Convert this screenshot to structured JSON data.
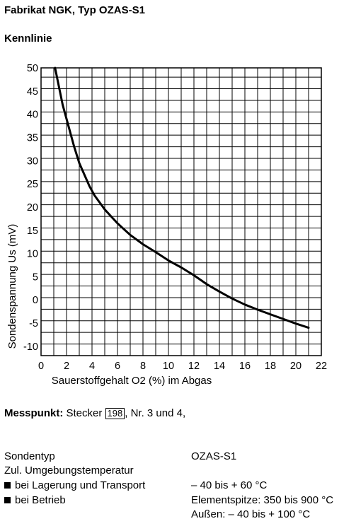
{
  "header": {
    "title": "Fabrikat NGK, Typ OZAS-S1",
    "subtitle": "Kennlinie"
  },
  "chart_data": {
    "type": "line",
    "xlabel": "Sauerstoffgehalt O2 (%) im Abgas",
    "ylabel": "Sondenspannung Us (mV)",
    "xlim": [
      0,
      22
    ],
    "ylim": [
      -12,
      50
    ],
    "xticks": [
      0,
      2,
      4,
      6,
      8,
      10,
      12,
      14,
      16,
      18,
      20,
      22
    ],
    "yticks": [
      50,
      45,
      40,
      35,
      30,
      25,
      20,
      15,
      10,
      5,
      0,
      -5,
      -10
    ],
    "grid": true,
    "series": [
      {
        "x": [
          1.1,
          1.4,
          1.7,
          2.0,
          2.2,
          2.6,
          3.0,
          3.4,
          3.8,
          4.2,
          4.6,
          5.0,
          5.5,
          6.0,
          7.0,
          8.0,
          9.0,
          10.0,
          11.0,
          12.0,
          13.0,
          14.0,
          15.0,
          16.0,
          17.0,
          18.0,
          19.0,
          20.0,
          21.0
        ],
        "y": [
          50,
          46,
          42,
          39,
          37,
          33,
          29.5,
          27,
          24.5,
          22.5,
          21,
          19.5,
          18,
          16.5,
          14,
          12,
          10.3,
          8.5,
          7,
          5.3,
          3.4,
          1.8,
          0.3,
          -1,
          -2.1,
          -3.1,
          -4.1,
          -5.1,
          -6
        ]
      }
    ]
  },
  "messpunkt": {
    "label": "Messpunkt:",
    "text_before": " Stecker ",
    "connector": "198",
    "text_after": ", Nr. 3 und 4,"
  },
  "specs": {
    "sondentyp_label": "Sondentyp",
    "sondentyp_value": "OZAS-S1",
    "temp_label": "Zul. Umgebungstemperatur",
    "lagerung_label": "bei Lagerung und Transport",
    "lagerung_value": "– 40 bis + 60 °C",
    "betrieb_label": "bei Betrieb",
    "betrieb_value1": "Elementspitze: 350 bis 900 °C",
    "betrieb_value2": "Außen: – 40 bis + 100 °C"
  }
}
